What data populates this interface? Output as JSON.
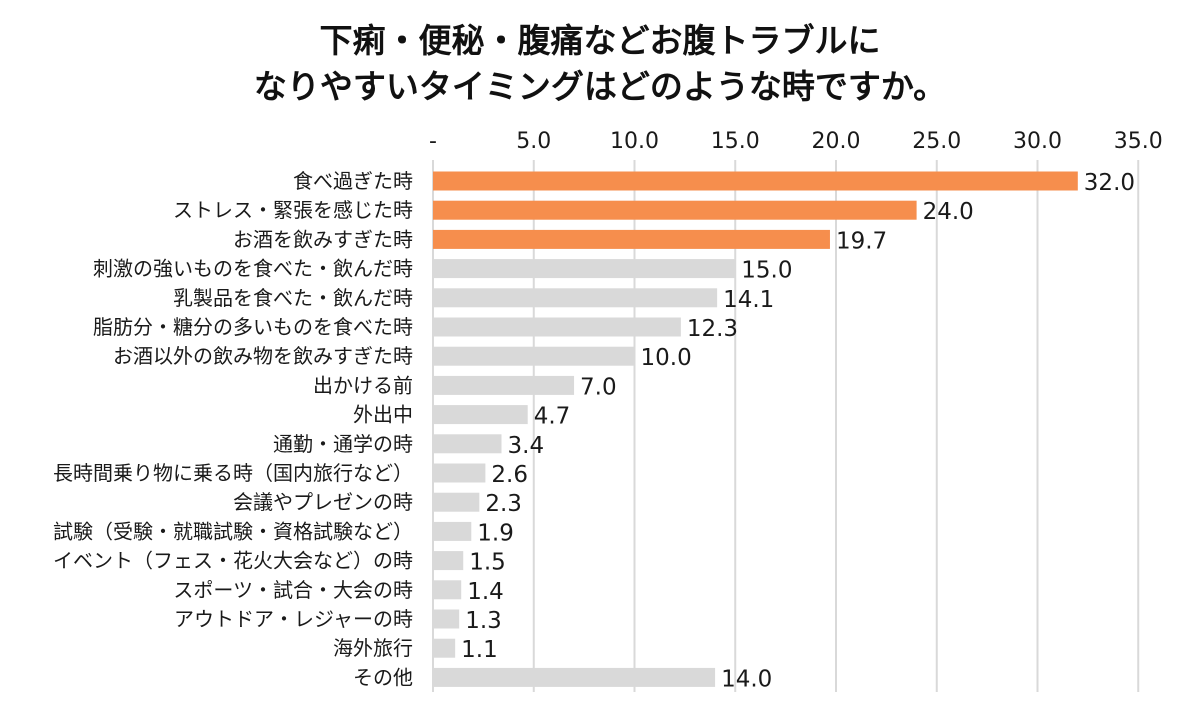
{
  "title_line1": "下痢・便秘・腹痛などお腹トラブルに",
  "title_line2": "なりやすいタイミングはどのような時ですか。",
  "colors": {
    "highlight": "#F68E4D",
    "normal": "#D9D9D9",
    "grid": "#D9D9D9"
  },
  "chart_data": {
    "type": "bar",
    "orientation": "horizontal",
    "title": "下痢・便秘・腹痛などお腹トラブルになりやすいタイミングはどのような時ですか。",
    "xlim": [
      0,
      35
    ],
    "tick_labels": [
      "-",
      "5.0",
      "10.0",
      "15.0",
      "20.0",
      "25.0",
      "30.0",
      "35.0"
    ],
    "tick_values": [
      0,
      5,
      10,
      15,
      20,
      25,
      30,
      35
    ],
    "axis_position": "top",
    "grid": true,
    "categories": [
      "食べ過ぎた時",
      "ストレス・緊張を感じた時",
      "お酒を飲みすぎた時",
      "刺激の強いものを食べた・飲んだ時",
      "乳製品を食べた・飲んだ時",
      "脂肪分・糖分の多いものを食べた時",
      "お酒以外の飲み物を飲みすぎた時",
      "出かける前",
      "外出中",
      "通勤・通学の時",
      "長時間乗り物に乗る時（国内旅行など）",
      "会議やプレゼンの時",
      "試験（受験・就職試験・資格試験など）",
      "イベント（フェス・花火大会など）の時",
      "スポーツ・試合・大会の時",
      "アウトドア・レジャーの時",
      "海外旅行",
      "その他"
    ],
    "values": [
      32.0,
      24.0,
      19.7,
      15.0,
      14.1,
      12.3,
      10.0,
      7.0,
      4.7,
      3.4,
      2.6,
      2.3,
      1.9,
      1.5,
      1.4,
      1.3,
      1.1,
      14.0
    ],
    "value_labels": [
      "32.0",
      "24.0",
      "19.7",
      "15.0",
      "14.1",
      "12.3",
      "10.0",
      "7.0",
      "4.7",
      "3.4",
      "2.6",
      "2.3",
      "1.9",
      "1.5",
      "1.4",
      "1.3",
      "1.1",
      "14.0"
    ],
    "highlighted": [
      true,
      true,
      true,
      false,
      false,
      false,
      false,
      false,
      false,
      false,
      false,
      false,
      false,
      false,
      false,
      false,
      false,
      false
    ]
  }
}
